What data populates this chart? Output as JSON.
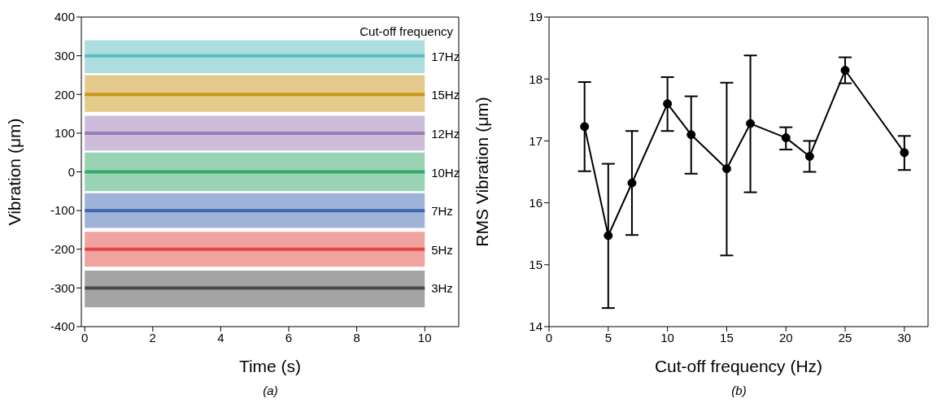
{
  "chart_data": [
    {
      "type": "line",
      "xlabel": "Time (s)",
      "ylabel": "Vibration (μm)",
      "annotations": [
        "Cut-off frequency",
        "(a)"
      ],
      "xlim": [
        -0.1,
        11
      ],
      "xticks": [
        0,
        2,
        4,
        6,
        8,
        10
      ],
      "ylim": [
        -400,
        400
      ],
      "yticks": [
        -400,
        -300,
        -200,
        -100,
        0,
        100,
        200,
        300,
        400
      ],
      "grid": false,
      "legend": false,
      "marker": "none",
      "line_style": "solid",
      "series": [
        {
          "name": "17Hz",
          "color": "#5bbcc0",
          "x": [
            0,
            10
          ],
          "values": [
            300,
            300
          ],
          "lower": [
            255,
            255
          ],
          "upper": [
            340,
            340
          ]
        },
        {
          "name": "15Hz",
          "color": "#c9971a",
          "x": [
            0,
            10
          ],
          "values": [
            200,
            200
          ],
          "lower": [
            155,
            155
          ],
          "upper": [
            250,
            250
          ]
        },
        {
          "name": "12Hz",
          "color": "#9b7ab5",
          "x": [
            0,
            10
          ],
          "values": [
            100,
            100
          ],
          "lower": [
            55,
            55
          ],
          "upper": [
            145,
            145
          ]
        },
        {
          "name": "10Hz",
          "color": "#35a86a",
          "x": [
            0,
            10
          ],
          "values": [
            0,
            0
          ],
          "lower": [
            -50,
            -50
          ],
          "upper": [
            50,
            50
          ]
        },
        {
          "name": "7Hz",
          "color": "#3f66b0",
          "x": [
            0,
            10
          ],
          "values": [
            -100,
            -100
          ],
          "lower": [
            -145,
            -145
          ],
          "upper": [
            -55,
            -55
          ]
        },
        {
          "name": "5Hz",
          "color": "#e2483f",
          "x": [
            0,
            10
          ],
          "values": [
            -200,
            -200
          ],
          "lower": [
            -245,
            -245
          ],
          "upper": [
            -155,
            -155
          ]
        },
        {
          "name": "3Hz",
          "color": "#4a4a4a",
          "x": [
            0,
            10
          ],
          "values": [
            -300,
            -300
          ],
          "lower": [
            -350,
            -350
          ],
          "upper": [
            -255,
            -255
          ]
        }
      ]
    },
    {
      "type": "line",
      "xlabel": "Cut-off frequency (Hz)",
      "ylabel": "RMS Vibration (μm)",
      "annotations": [
        "(b)"
      ],
      "xlim": [
        0,
        32
      ],
      "xticks": [
        0,
        5,
        10,
        15,
        20,
        25,
        30
      ],
      "ylim": [
        14,
        19
      ],
      "yticks": [
        14,
        15,
        16,
        17,
        18,
        19
      ],
      "grid": false,
      "legend": false,
      "marker": "circle",
      "line_style": "solid",
      "series": [
        {
          "color": "#000000",
          "x": [
            3,
            5,
            7,
            10,
            12,
            15,
            17,
            20,
            22,
            25,
            30
          ],
          "values": [
            17.23,
            15.47,
            16.32,
            17.6,
            17.1,
            16.55,
            17.28,
            17.05,
            16.75,
            18.14,
            16.81
          ],
          "errors": [
            [
              16.51,
              17.95
            ],
            [
              14.3,
              16.63
            ],
            [
              15.48,
              17.16
            ],
            [
              17.16,
              18.03
            ],
            [
              16.47,
              17.72
            ],
            [
              15.15,
              17.94
            ],
            [
              16.17,
              18.38
            ],
            [
              16.86,
              17.22
            ],
            [
              16.5,
              17.0
            ],
            [
              17.93,
              18.35
            ],
            [
              16.53,
              17.08
            ]
          ]
        }
      ]
    }
  ]
}
